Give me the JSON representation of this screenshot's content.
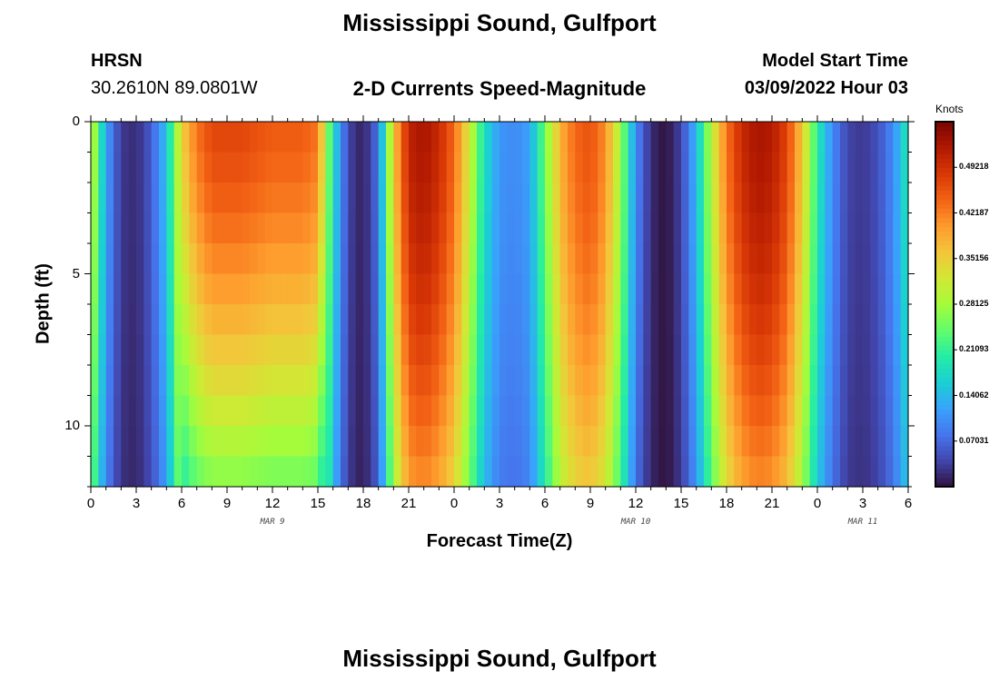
{
  "header": {
    "title": "Mississippi Sound, Gulfport",
    "station_code": "HRSN",
    "station_coords": "30.2610N  89.0801W",
    "product": "2-D Currents Speed-Magnitude",
    "model_start_label": "Model Start Time",
    "model_start_value": "03/09/2022 Hour 03"
  },
  "footer": {
    "title": "Mississippi Sound, Gulfport"
  },
  "chart_data": {
    "type": "heatmap",
    "title": "2-D Currents Speed-Magnitude",
    "xlabel": "Forecast Time(Z)",
    "ylabel": "Depth (ft)",
    "x_range_hours": [
      0,
      54
    ],
    "y_range_ft": [
      0,
      12
    ],
    "x_tick_values": [
      0,
      3,
      6,
      9,
      12,
      15,
      18,
      21,
      24,
      27,
      30,
      33,
      36,
      39,
      42,
      45,
      48,
      51,
      54
    ],
    "x_tick_labels": [
      "0",
      "3",
      "6",
      "9",
      "12",
      "15",
      "18",
      "21",
      "0",
      "3",
      "6",
      "9",
      "12",
      "15",
      "18",
      "21",
      "0",
      "3",
      "6"
    ],
    "y_tick_values": [
      0,
      5,
      10
    ],
    "y_tick_labels": [
      "0",
      "5",
      "10"
    ],
    "date_labels": [
      {
        "text": "MAR 9",
        "hour": 12
      },
      {
        "text": "MAR 10",
        "hour": 36
      },
      {
        "text": "MAR 11",
        "hour": 51
      }
    ],
    "depth_levels_ft": [
      0.5,
      1.5,
      2.5,
      3.5,
      4.5,
      5.5,
      6.5,
      7.5,
      8.5,
      9.5,
      10.5,
      11.5
    ],
    "time_step_hours": 0.5,
    "speed_profile": {
      "description": "surface speed (knots) at forecast hour; deeper layers scaled by depth factor",
      "hours": [
        0,
        0.5,
        1,
        2,
        3,
        4,
        5,
        6,
        7,
        8,
        10,
        12,
        14,
        15,
        15.5,
        16,
        17,
        18,
        19,
        20,
        21,
        22,
        23,
        24,
        25,
        26,
        27,
        28,
        29,
        30,
        31,
        32,
        33,
        34,
        35,
        36,
        37,
        38,
        39,
        40,
        41,
        42,
        43,
        44,
        45,
        46,
        47,
        48,
        49,
        50,
        51,
        52,
        53,
        54
      ],
      "surface_knots": [
        0.33,
        0.22,
        0.12,
        0.03,
        0.02,
        0.06,
        0.15,
        0.35,
        0.43,
        0.47,
        0.47,
        0.45,
        0.45,
        0.43,
        0.3,
        0.18,
        0.04,
        0.01,
        0.08,
        0.36,
        0.51,
        0.53,
        0.5,
        0.44,
        0.32,
        0.18,
        0.11,
        0.1,
        0.12,
        0.25,
        0.38,
        0.44,
        0.46,
        0.41,
        0.28,
        0.1,
        0.02,
        0.0,
        0.04,
        0.14,
        0.3,
        0.43,
        0.5,
        0.53,
        0.52,
        0.47,
        0.36,
        0.2,
        0.1,
        0.04,
        0.03,
        0.05,
        0.1,
        0.2
      ]
    },
    "colorbar": {
      "label": "Knots",
      "vmin": 0,
      "vmax": 0.5625,
      "ticks": [
        "0.49218",
        "0.42187",
        "0.35156",
        "0.28125",
        "0.21093",
        "0.14062",
        "0.07031"
      ],
      "tick_values": [
        0.49218,
        0.42187,
        0.35156,
        0.28125,
        0.21093,
        0.14062,
        0.07031
      ],
      "colors": [
        "#30123b",
        "#4145ab",
        "#4675ed",
        "#39a2fc",
        "#1bcfd4",
        "#24eca6",
        "#61fc6c",
        "#a4fc3b",
        "#d1e834",
        "#f3c63a",
        "#fe9b2d",
        "#f36315",
        "#d93806",
        "#b11901",
        "#7a0402"
      ]
    }
  }
}
